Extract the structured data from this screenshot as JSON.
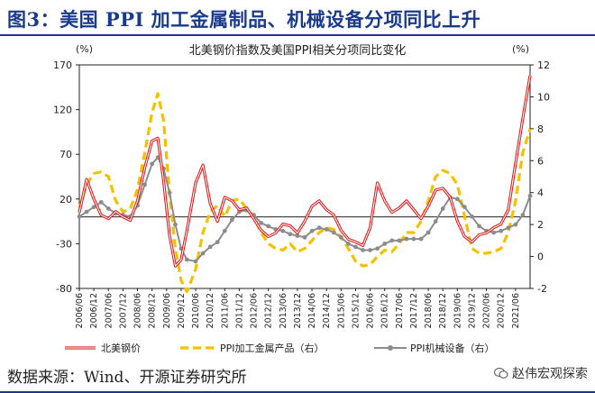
{
  "figure": {
    "title": "图3：美国 PPI 加工金属制品、机械设备分项同比上升",
    "source": "数据来源：Wind、开源证券研究所",
    "watermark": "赵伟宏观探索"
  },
  "chart_data": {
    "type": "line",
    "title": "北美钢价指数及美国PPI相关分项同比变化",
    "ylabel_left": "(%)",
    "ylabel_right": "(%)",
    "ylim_left": [
      -80,
      170
    ],
    "yticks_left": [
      -80,
      -30,
      20,
      70,
      120,
      170
    ],
    "ylim_right": [
      -2,
      12
    ],
    "yticks_right": [
      -2,
      0,
      2,
      4,
      6,
      8,
      10,
      12
    ],
    "x_start": 2006.0,
    "x_end": 2021.5,
    "xtick_labels": [
      "2006/06",
      "2006/12",
      "2007/06",
      "2007/12",
      "2008/06",
      "2008/12",
      "2009/06",
      "2009/12",
      "2010/06",
      "2010/12",
      "2011/06",
      "2011/12",
      "2012/06",
      "2012/12",
      "2013/06",
      "2013/12",
      "2014/06",
      "2014/12",
      "2015/06",
      "2015/12",
      "2016/06",
      "2016/12",
      "2017/06",
      "2017/12",
      "2018/06",
      "2018/12",
      "2019/06",
      "2019/12",
      "2020/06",
      "2020/12",
      "2021/06"
    ],
    "zero_line_left": 0,
    "legend": [
      "北美钢价",
      "PPI加工金属产品（右）",
      "PPI机械设备（右）"
    ],
    "series": [
      {
        "name": "北美钢价",
        "axis": "left",
        "color": "#e02020",
        "x": [
          2006.0,
          2006.25,
          2006.5,
          2006.75,
          2007.0,
          2007.25,
          2007.5,
          2007.75,
          2008.0,
          2008.25,
          2008.5,
          2008.7,
          2008.9,
          2009.1,
          2009.3,
          2009.5,
          2009.7,
          2010.0,
          2010.25,
          2010.5,
          2010.75,
          2011.0,
          2011.25,
          2011.5,
          2011.75,
          2012.0,
          2012.25,
          2012.5,
          2012.75,
          2013.0,
          2013.25,
          2013.5,
          2013.75,
          2014.0,
          2014.25,
          2014.5,
          2014.75,
          2015.0,
          2015.25,
          2015.5,
          2015.75,
          2016.0,
          2016.25,
          2016.5,
          2016.75,
          2017.0,
          2017.25,
          2017.5,
          2017.75,
          2018.0,
          2018.25,
          2018.5,
          2018.75,
          2019.0,
          2019.25,
          2019.5,
          2019.75,
          2020.0,
          2020.25,
          2020.5,
          2020.75,
          2021.0,
          2021.25,
          2021.5
        ],
        "values": [
          5,
          42,
          20,
          2,
          -2,
          6,
          0,
          -4,
          18,
          55,
          85,
          88,
          40,
          -20,
          -55,
          -48,
          -15,
          38,
          58,
          15,
          -5,
          22,
          18,
          8,
          10,
          -2,
          -15,
          -22,
          -18,
          -8,
          -10,
          -18,
          -5,
          12,
          18,
          8,
          2,
          -15,
          -25,
          -28,
          -32,
          -12,
          38,
          18,
          5,
          10,
          18,
          8,
          -2,
          12,
          30,
          32,
          22,
          -5,
          -22,
          -28,
          -20,
          -18,
          -12,
          -8,
          8,
          60,
          110,
          158
        ]
      },
      {
        "name": "PPI加工金属产品（右）",
        "axis": "right",
        "color": "#f5c000",
        "x": [
          2006.0,
          2006.25,
          2006.5,
          2006.75,
          2007.0,
          2007.25,
          2007.5,
          2007.75,
          2008.0,
          2008.25,
          2008.5,
          2008.7,
          2008.9,
          2009.1,
          2009.3,
          2009.5,
          2009.7,
          2010.0,
          2010.25,
          2010.5,
          2010.75,
          2011.0,
          2011.25,
          2011.5,
          2011.75,
          2012.0,
          2012.25,
          2012.5,
          2012.75,
          2013.0,
          2013.25,
          2013.5,
          2013.75,
          2014.0,
          2014.25,
          2014.5,
          2014.75,
          2015.0,
          2015.25,
          2015.5,
          2015.75,
          2016.0,
          2016.25,
          2016.5,
          2016.75,
          2017.0,
          2017.25,
          2017.5,
          2017.75,
          2018.0,
          2018.25,
          2018.5,
          2018.75,
          2019.0,
          2019.25,
          2019.5,
          2019.75,
          2020.0,
          2020.25,
          2020.5,
          2020.75,
          2021.0,
          2021.25,
          2021.5
        ],
        "values": [
          3.0,
          4.5,
          5.2,
          5.3,
          5.0,
          3.5,
          2.8,
          3.0,
          4.2,
          6.5,
          9.0,
          10.2,
          8.5,
          4.0,
          0.5,
          -1.5,
          -2.2,
          -0.8,
          1.5,
          2.8,
          3.2,
          2.5,
          3.5,
          3.6,
          3.0,
          2.5,
          1.5,
          0.8,
          0.5,
          0.4,
          0.8,
          0.3,
          0.5,
          1.0,
          1.5,
          1.8,
          1.7,
          1.2,
          0.5,
          -0.3,
          -0.6,
          -0.5,
          0.0,
          0.4,
          0.3,
          0.8,
          1.5,
          1.5,
          2.2,
          3.5,
          5.0,
          5.4,
          5.2,
          4.5,
          2.5,
          0.5,
          0.2,
          0.2,
          0.3,
          0.5,
          1.5,
          3.5,
          6.5,
          8.0
        ]
      },
      {
        "name": "PPI机械设备（右）",
        "axis": "right",
        "color": "#8c8c8c",
        "x": [
          2006.0,
          2006.25,
          2006.5,
          2006.75,
          2007.0,
          2007.25,
          2007.5,
          2007.75,
          2008.0,
          2008.25,
          2008.5,
          2008.7,
          2008.9,
          2009.1,
          2009.3,
          2009.5,
          2009.7,
          2010.0,
          2010.25,
          2010.5,
          2010.75,
          2011.0,
          2011.25,
          2011.5,
          2011.75,
          2012.0,
          2012.25,
          2012.5,
          2012.75,
          2013.0,
          2013.25,
          2013.5,
          2013.75,
          2014.0,
          2014.25,
          2014.5,
          2014.75,
          2015.0,
          2015.25,
          2015.5,
          2015.75,
          2016.0,
          2016.25,
          2016.5,
          2016.75,
          2017.0,
          2017.25,
          2017.5,
          2017.75,
          2018.0,
          2018.25,
          2018.5,
          2018.75,
          2019.0,
          2019.25,
          2019.5,
          2019.75,
          2020.0,
          2020.25,
          2020.5,
          2020.75,
          2021.0,
          2021.25,
          2021.5
        ],
        "values": [
          2.5,
          2.8,
          3.1,
          3.4,
          3.0,
          2.7,
          2.6,
          2.5,
          3.2,
          4.5,
          5.8,
          6.2,
          5.5,
          4.0,
          2.0,
          0.5,
          -0.2,
          -0.3,
          0.2,
          0.6,
          0.9,
          1.6,
          2.3,
          2.8,
          2.9,
          2.6,
          2.1,
          1.9,
          1.7,
          1.6,
          1.4,
          1.3,
          1.2,
          1.6,
          1.8,
          1.7,
          1.5,
          1.2,
          0.8,
          0.6,
          0.4,
          0.4,
          0.5,
          0.8,
          1.0,
          1.0,
          1.1,
          1.1,
          1.1,
          1.5,
          2.2,
          3.0,
          3.7,
          3.6,
          3.1,
          2.5,
          1.9,
          1.6,
          1.5,
          1.6,
          1.8,
          2.0,
          2.6,
          3.8
        ]
      }
    ]
  }
}
